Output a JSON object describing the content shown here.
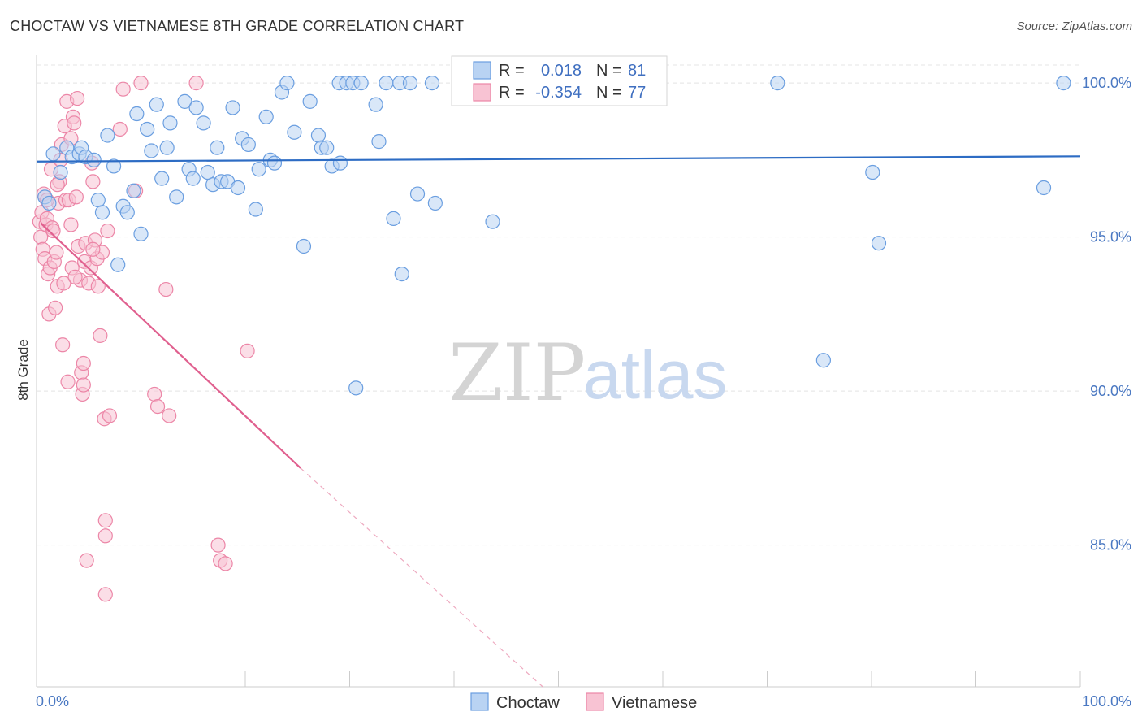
{
  "title": "CHOCTAW VS VIETNAMESE 8TH GRADE CORRELATION CHART",
  "source": "Source: ZipAtlas.com",
  "watermark": {
    "zip": "ZIP",
    "atlas": "atlas"
  },
  "colors": {
    "choctaw_fill": "#b9d3f3",
    "choctaw_stroke": "#6a9ee0",
    "choctaw_line": "#2d6cc4",
    "vietnamese_fill": "#f8c3d3",
    "vietnamese_stroke": "#ec86a7",
    "vietnamese_line": "#e0608f",
    "grid": "#e4e4e4",
    "axis_label": "#4a78c2"
  },
  "legend_top": {
    "rows": [
      {
        "r_label": "R =",
        "r_value": "0.018",
        "n_label": "N =",
        "n_value": "81"
      },
      {
        "r_label": "R =",
        "r_value": "-0.354",
        "n_label": "N =",
        "n_value": "77"
      }
    ]
  },
  "chart_data": {
    "type": "scatter",
    "title": "CHOCTAW VS VIETNAMESE 8TH GRADE CORRELATION CHART",
    "xlabel": "",
    "ylabel": "8th Grade",
    "xlim": [
      0,
      100
    ],
    "ylim": [
      80.4,
      100.9
    ],
    "x_tick_labels": [
      "0.0%",
      "100.0%"
    ],
    "y_ticks": [
      85,
      90,
      95,
      100
    ],
    "y_tick_labels": [
      "85.0%",
      "90.0%",
      "95.0%",
      "100.0%"
    ],
    "grid": true,
    "legend_position": "bottom-center",
    "series": [
      {
        "name": "Choctaw",
        "R": 0.018,
        "N": 81,
        "trend": {
          "x": [
            0,
            100
          ],
          "y": [
            97.45,
            97.62
          ]
        },
        "points": [
          [
            0.8,
            96.3
          ],
          [
            1.2,
            96.1
          ],
          [
            1.6,
            97.7
          ],
          [
            2.3,
            97.1
          ],
          [
            2.9,
            97.9
          ],
          [
            3.4,
            97.6
          ],
          [
            4.1,
            97.7
          ],
          [
            4.3,
            97.9
          ],
          [
            4.7,
            97.6
          ],
          [
            5.5,
            97.5
          ],
          [
            5.9,
            96.2
          ],
          [
            6.3,
            95.8
          ],
          [
            6.8,
            98.3
          ],
          [
            7.4,
            97.3
          ],
          [
            7.8,
            94.1
          ],
          [
            8.3,
            96.0
          ],
          [
            8.7,
            95.8
          ],
          [
            9.3,
            96.5
          ],
          [
            9.6,
            99.0
          ],
          [
            10.0,
            95.1
          ],
          [
            10.6,
            98.5
          ],
          [
            11.0,
            97.8
          ],
          [
            11.5,
            99.3
          ],
          [
            12.0,
            96.9
          ],
          [
            12.5,
            97.9
          ],
          [
            12.8,
            98.7
          ],
          [
            13.4,
            96.3
          ],
          [
            14.2,
            99.4
          ],
          [
            14.6,
            97.2
          ],
          [
            15.0,
            96.9
          ],
          [
            15.3,
            99.2
          ],
          [
            16.0,
            98.7
          ],
          [
            16.4,
            97.1
          ],
          [
            16.9,
            96.7
          ],
          [
            17.3,
            97.9
          ],
          [
            17.7,
            96.8
          ],
          [
            18.3,
            96.8
          ],
          [
            18.8,
            99.2
          ],
          [
            19.3,
            96.6
          ],
          [
            19.7,
            98.2
          ],
          [
            20.3,
            98.0
          ],
          [
            21.0,
            95.9
          ],
          [
            21.3,
            97.2
          ],
          [
            22.0,
            98.9
          ],
          [
            22.4,
            97.5
          ],
          [
            22.8,
            97.4
          ],
          [
            23.5,
            99.7
          ],
          [
            24.0,
            100.0
          ],
          [
            24.7,
            98.4
          ],
          [
            25.6,
            94.7
          ],
          [
            26.2,
            99.4
          ],
          [
            27.0,
            98.3
          ],
          [
            27.3,
            97.9
          ],
          [
            27.8,
            97.9
          ],
          [
            28.3,
            97.3
          ],
          [
            29.1,
            97.4
          ],
          [
            29.0,
            100.0
          ],
          [
            29.7,
            100.0
          ],
          [
            30.3,
            100.0
          ],
          [
            30.6,
            90.1
          ],
          [
            31.1,
            100.0
          ],
          [
            32.5,
            99.3
          ],
          [
            32.8,
            98.1
          ],
          [
            33.5,
            100.0
          ],
          [
            34.2,
            95.6
          ],
          [
            34.8,
            100.0
          ],
          [
            35.0,
            93.8
          ],
          [
            35.8,
            100.0
          ],
          [
            36.5,
            96.4
          ],
          [
            37.9,
            100.0
          ],
          [
            38.2,
            96.1
          ],
          [
            43.7,
            95.5
          ],
          [
            44.2,
            100.0
          ],
          [
            50.9,
            100.0
          ],
          [
            52.0,
            100.0
          ],
          [
            71.0,
            100.0
          ],
          [
            75.4,
            91.0
          ],
          [
            80.1,
            97.1
          ],
          [
            80.7,
            94.8
          ],
          [
            96.5,
            96.6
          ],
          [
            98.4,
            100.0
          ]
        ]
      },
      {
        "name": "Vietnamese",
        "R": -0.354,
        "N": 77,
        "trend": {
          "x": [
            0.4,
            25.3
          ],
          "y": [
            95.45,
            87.5
          ]
        },
        "trend_dashed": {
          "x": [
            25.3,
            48.5
          ],
          "y": [
            87.5,
            80.4
          ]
        },
        "points": [
          [
            0.3,
            95.5
          ],
          [
            0.4,
            95.0
          ],
          [
            0.5,
            95.8
          ],
          [
            0.6,
            94.6
          ],
          [
            0.7,
            96.4
          ],
          [
            0.8,
            94.3
          ],
          [
            0.9,
            95.4
          ],
          [
            1.0,
            95.6
          ],
          [
            1.1,
            93.8
          ],
          [
            1.2,
            92.5
          ],
          [
            1.3,
            94.0
          ],
          [
            1.4,
            97.2
          ],
          [
            1.5,
            95.3
          ],
          [
            1.6,
            95.2
          ],
          [
            1.7,
            94.2
          ],
          [
            1.8,
            92.7
          ],
          [
            1.9,
            94.5
          ],
          [
            2.0,
            93.4
          ],
          [
            2.1,
            96.1
          ],
          [
            2.2,
            96.8
          ],
          [
            2.3,
            97.5
          ],
          [
            2.4,
            98.0
          ],
          [
            2.5,
            91.5
          ],
          [
            2.6,
            93.5
          ],
          [
            2.7,
            98.6
          ],
          [
            2.8,
            96.2
          ],
          [
            2.9,
            99.4
          ],
          [
            3.0,
            90.3
          ],
          [
            3.1,
            96.2
          ],
          [
            3.3,
            98.2
          ],
          [
            3.4,
            94.0
          ],
          [
            3.5,
            98.9
          ],
          [
            3.6,
            98.7
          ],
          [
            3.8,
            96.3
          ],
          [
            3.9,
            99.5
          ],
          [
            4.0,
            94.7
          ],
          [
            4.2,
            93.6
          ],
          [
            4.3,
            90.6
          ],
          [
            4.4,
            89.9
          ],
          [
            4.5,
            90.9
          ],
          [
            4.5,
            90.2
          ],
          [
            4.6,
            94.2
          ],
          [
            4.7,
            94.8
          ],
          [
            4.8,
            84.5
          ],
          [
            5.0,
            93.5
          ],
          [
            5.2,
            94.0
          ],
          [
            5.3,
            97.4
          ],
          [
            5.4,
            96.8
          ],
          [
            5.6,
            94.9
          ],
          [
            5.8,
            94.3
          ],
          [
            5.9,
            93.4
          ],
          [
            6.1,
            91.8
          ],
          [
            6.3,
            94.5
          ],
          [
            6.5,
            89.1
          ],
          [
            6.6,
            85.8
          ],
          [
            6.6,
            85.3
          ],
          [
            6.6,
            83.4
          ],
          [
            6.8,
            95.2
          ],
          [
            7.0,
            89.2
          ],
          [
            8.0,
            98.5
          ],
          [
            8.3,
            99.8
          ],
          [
            9.5,
            96.5
          ],
          [
            10.0,
            100.0
          ],
          [
            11.3,
            89.9
          ],
          [
            11.6,
            89.5
          ],
          [
            12.4,
            93.3
          ],
          [
            12.7,
            89.2
          ],
          [
            15.3,
            100.0
          ],
          [
            17.4,
            85.0
          ],
          [
            17.6,
            84.5
          ],
          [
            18.1,
            84.4
          ],
          [
            20.2,
            91.3
          ],
          [
            3.3,
            95.4
          ],
          [
            1.0,
            96.2
          ],
          [
            2.0,
            96.7
          ],
          [
            3.7,
            93.7
          ],
          [
            5.4,
            94.6
          ]
        ]
      }
    ]
  }
}
